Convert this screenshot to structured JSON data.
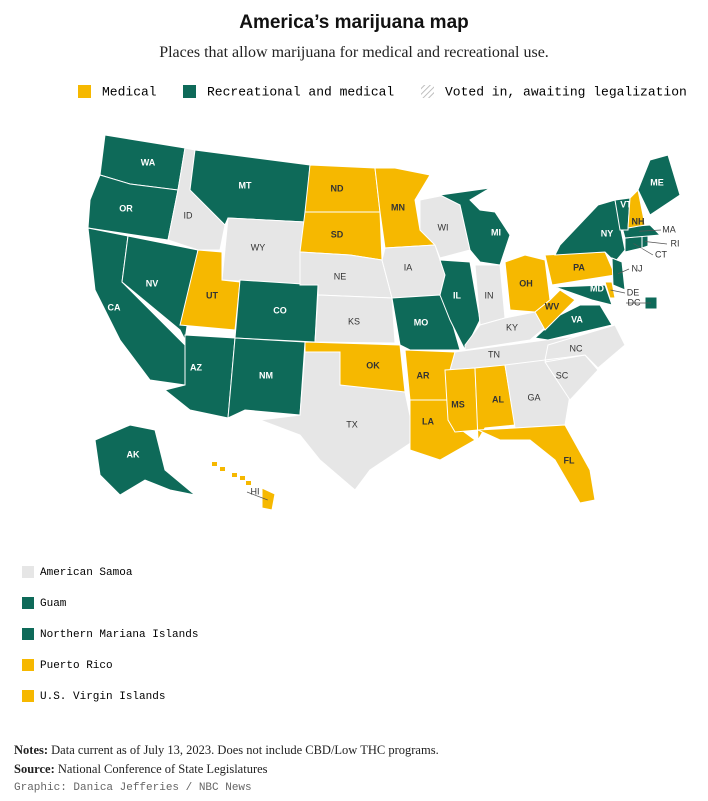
{
  "header": {
    "title": "America’s marijuana map",
    "subtitle": "Places that allow marijuana for medical and recreational use."
  },
  "legend": [
    {
      "label": "Medical",
      "status": "medical"
    },
    {
      "label": "Recreational and medical",
      "status": "recreational"
    },
    {
      "label": "Voted in, awaiting legalization",
      "status": "pending"
    }
  ],
  "colors": {
    "medical": "#f6b800",
    "recreational": "#0e6a59",
    "none": "#e6e6e6"
  },
  "map": {
    "states": [
      {
        "label": "WA",
        "status": "recreational"
      },
      {
        "label": "OR",
        "status": "recreational"
      },
      {
        "label": "CA",
        "status": "recreational"
      },
      {
        "label": "NV",
        "status": "recreational"
      },
      {
        "label": "ID",
        "status": "none"
      },
      {
        "label": "MT",
        "status": "recreational"
      },
      {
        "label": "WY",
        "status": "none"
      },
      {
        "label": "UT",
        "status": "medical"
      },
      {
        "label": "CO",
        "status": "recreational"
      },
      {
        "label": "AZ",
        "status": "recreational"
      },
      {
        "label": "NM",
        "status": "recreational"
      },
      {
        "label": "ND",
        "status": "medical"
      },
      {
        "label": "SD",
        "status": "medical"
      },
      {
        "label": "NE",
        "status": "none"
      },
      {
        "label": "KS",
        "status": "none"
      },
      {
        "label": "OK",
        "status": "medical"
      },
      {
        "label": "TX",
        "status": "none"
      },
      {
        "label": "MN",
        "status": "medical"
      },
      {
        "label": "IA",
        "status": "none"
      },
      {
        "label": "MO",
        "status": "recreational"
      },
      {
        "label": "AR",
        "status": "medical"
      },
      {
        "label": "LA",
        "status": "medical"
      },
      {
        "label": "WI",
        "status": "none"
      },
      {
        "label": "IL",
        "status": "recreational"
      },
      {
        "label": "MI",
        "status": "recreational"
      },
      {
        "label": "IN",
        "status": "none"
      },
      {
        "label": "OH",
        "status": "medical"
      },
      {
        "label": "KY",
        "status": "none"
      },
      {
        "label": "TN",
        "status": "none"
      },
      {
        "label": "MS",
        "status": "medical"
      },
      {
        "label": "AL",
        "status": "medical"
      },
      {
        "label": "GA",
        "status": "none"
      },
      {
        "label": "FL",
        "status": "medical"
      },
      {
        "label": "SC",
        "status": "none"
      },
      {
        "label": "NC",
        "status": "none"
      },
      {
        "label": "VA",
        "status": "recreational"
      },
      {
        "label": "WV",
        "status": "medical"
      },
      {
        "label": "PA",
        "status": "medical"
      },
      {
        "label": "NY",
        "status": "recreational"
      },
      {
        "label": "MD",
        "status": "recreational"
      },
      {
        "label": "DE",
        "status": "medical"
      },
      {
        "label": "NJ",
        "status": "recreational"
      },
      {
        "label": "CT",
        "status": "recreational"
      },
      {
        "label": "RI",
        "status": "recreational"
      },
      {
        "label": "MA",
        "status": "recreational"
      },
      {
        "label": "VT",
        "status": "recreational"
      },
      {
        "label": "NH",
        "status": "medical"
      },
      {
        "label": "ME",
        "status": "recreational"
      },
      {
        "label": "AK",
        "status": "recreational"
      },
      {
        "label": "HI",
        "status": "medical"
      },
      {
        "label": "DC",
        "status": "recreational"
      }
    ]
  },
  "territories": [
    {
      "label": "American Samoa",
      "status": "none"
    },
    {
      "label": "Guam",
      "status": "recreational"
    },
    {
      "label": "Northern Mariana Islands",
      "status": "recreational"
    },
    {
      "label": "Puerto Rico",
      "status": "medical"
    },
    {
      "label": "U.S. Virgin Islands",
      "status": "medical"
    }
  ],
  "footer": {
    "notes_label": "Notes:",
    "notes": "Data current as of July 13, 2023. Does not include CBD/Low THC programs.",
    "source_label": "Source:",
    "source": "National Conference of State Legislatures",
    "credit": "Graphic: Danica Jefferies / NBC News"
  }
}
